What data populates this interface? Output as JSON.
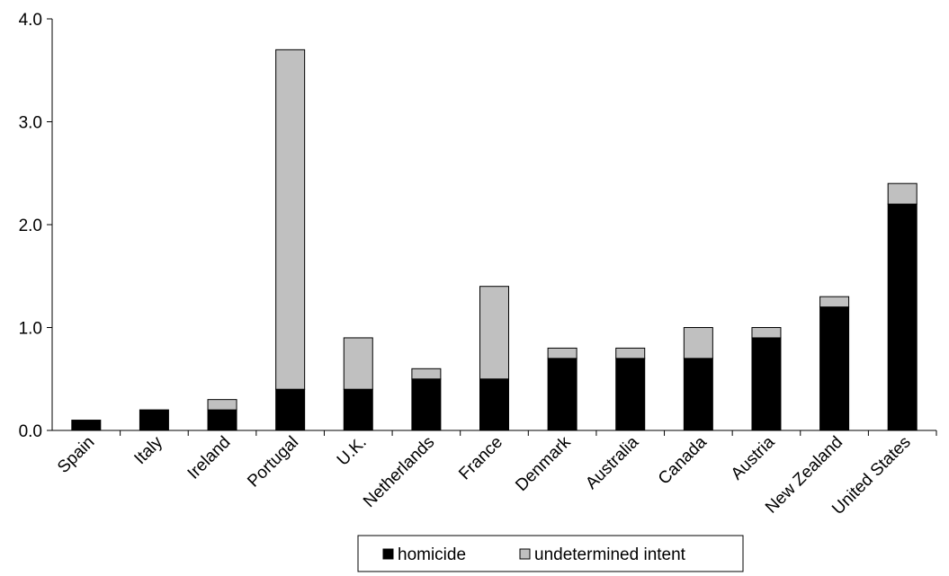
{
  "chart_data": {
    "type": "bar",
    "stacked": true,
    "categories": [
      "Spain",
      "Italy",
      "Ireland",
      "Portugal",
      "U.K.",
      "Netherlands",
      "France",
      "Denmark",
      "Australia",
      "Canada",
      "Austria",
      "New Zealand",
      "United States"
    ],
    "series": [
      {
        "name": "homicide",
        "color": "#000000",
        "values": [
          0.1,
          0.2,
          0.2,
          0.4,
          0.4,
          0.5,
          0.5,
          0.7,
          0.7,
          0.7,
          0.9,
          1.2,
          2.2
        ]
      },
      {
        "name": "undetermined intent",
        "color": "#c0c0c0",
        "values": [
          0.0,
          0.0,
          0.1,
          3.3,
          0.5,
          0.1,
          0.9,
          0.1,
          0.1,
          0.3,
          0.1,
          0.1,
          0.2
        ]
      }
    ],
    "ylim": [
      0,
      4
    ],
    "yticks": [
      "0.0",
      "1.0",
      "2.0",
      "3.0",
      "4.0"
    ],
    "legend_position": "bottom",
    "grid": false
  }
}
